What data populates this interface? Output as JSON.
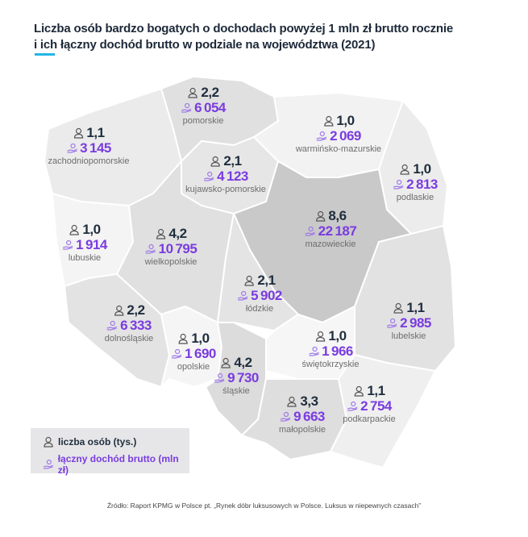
{
  "title_line1": "Liczba osób bardzo bogatych o dochodach powyżej 1 mln zł brutto rocznie",
  "title_line2": "i ich łączny dochód brutto w podziale na województwa (2021)",
  "colors": {
    "accent": "#22b5e6",
    "income": "#7a3ce0",
    "count": "#1f2d3d",
    "mazowieckie_fill": "#c9c9c9"
  },
  "icons": {
    "count": "person-icon",
    "income": "hand-money-icon"
  },
  "regions": [
    {
      "name": "zachodniopomorskie",
      "count": "1,1",
      "income": "3145"
    },
    {
      "name": "pomorskie",
      "count": "2,2",
      "income": "6054"
    },
    {
      "name": "warmińsko-mazurskie",
      "count": "1,0",
      "income": "2069"
    },
    {
      "name": "kujawsko-pomorskie",
      "count": "2,1",
      "income": "4123"
    },
    {
      "name": "podlaskie",
      "count": "1,0",
      "income": "2813"
    },
    {
      "name": "lubuskie",
      "count": "1,0",
      "income": "1914"
    },
    {
      "name": "wielkopolskie",
      "count": "4,2",
      "income": "10795"
    },
    {
      "name": "mazowieckie",
      "count": "8,6",
      "income": "22187"
    },
    {
      "name": "łódzkie",
      "count": "2,1",
      "income": "5902"
    },
    {
      "name": "lubelskie",
      "count": "1,1",
      "income": "2985"
    },
    {
      "name": "dolnośląskie",
      "count": "2,2",
      "income": "6333"
    },
    {
      "name": "opolskie",
      "count": "1,0",
      "income": "1690"
    },
    {
      "name": "śląskie",
      "count": "4,2",
      "income": "9730"
    },
    {
      "name": "świętokrzyskie",
      "count": "1,0",
      "income": "1966"
    },
    {
      "name": "małopolskie",
      "count": "3,3",
      "income": "9663"
    },
    {
      "name": "podkarpackie",
      "count": "1,1",
      "income": "2754"
    }
  ],
  "legend": {
    "count_label": "liczba osób (tys.)",
    "income_label": "łączny dochód brutto (mln zł)"
  },
  "source": "Źródło: Raport KPMG w Polsce pt. „Rynek dóbr luksusowych w Polsce. Luksus w niepewnych czasach”"
}
